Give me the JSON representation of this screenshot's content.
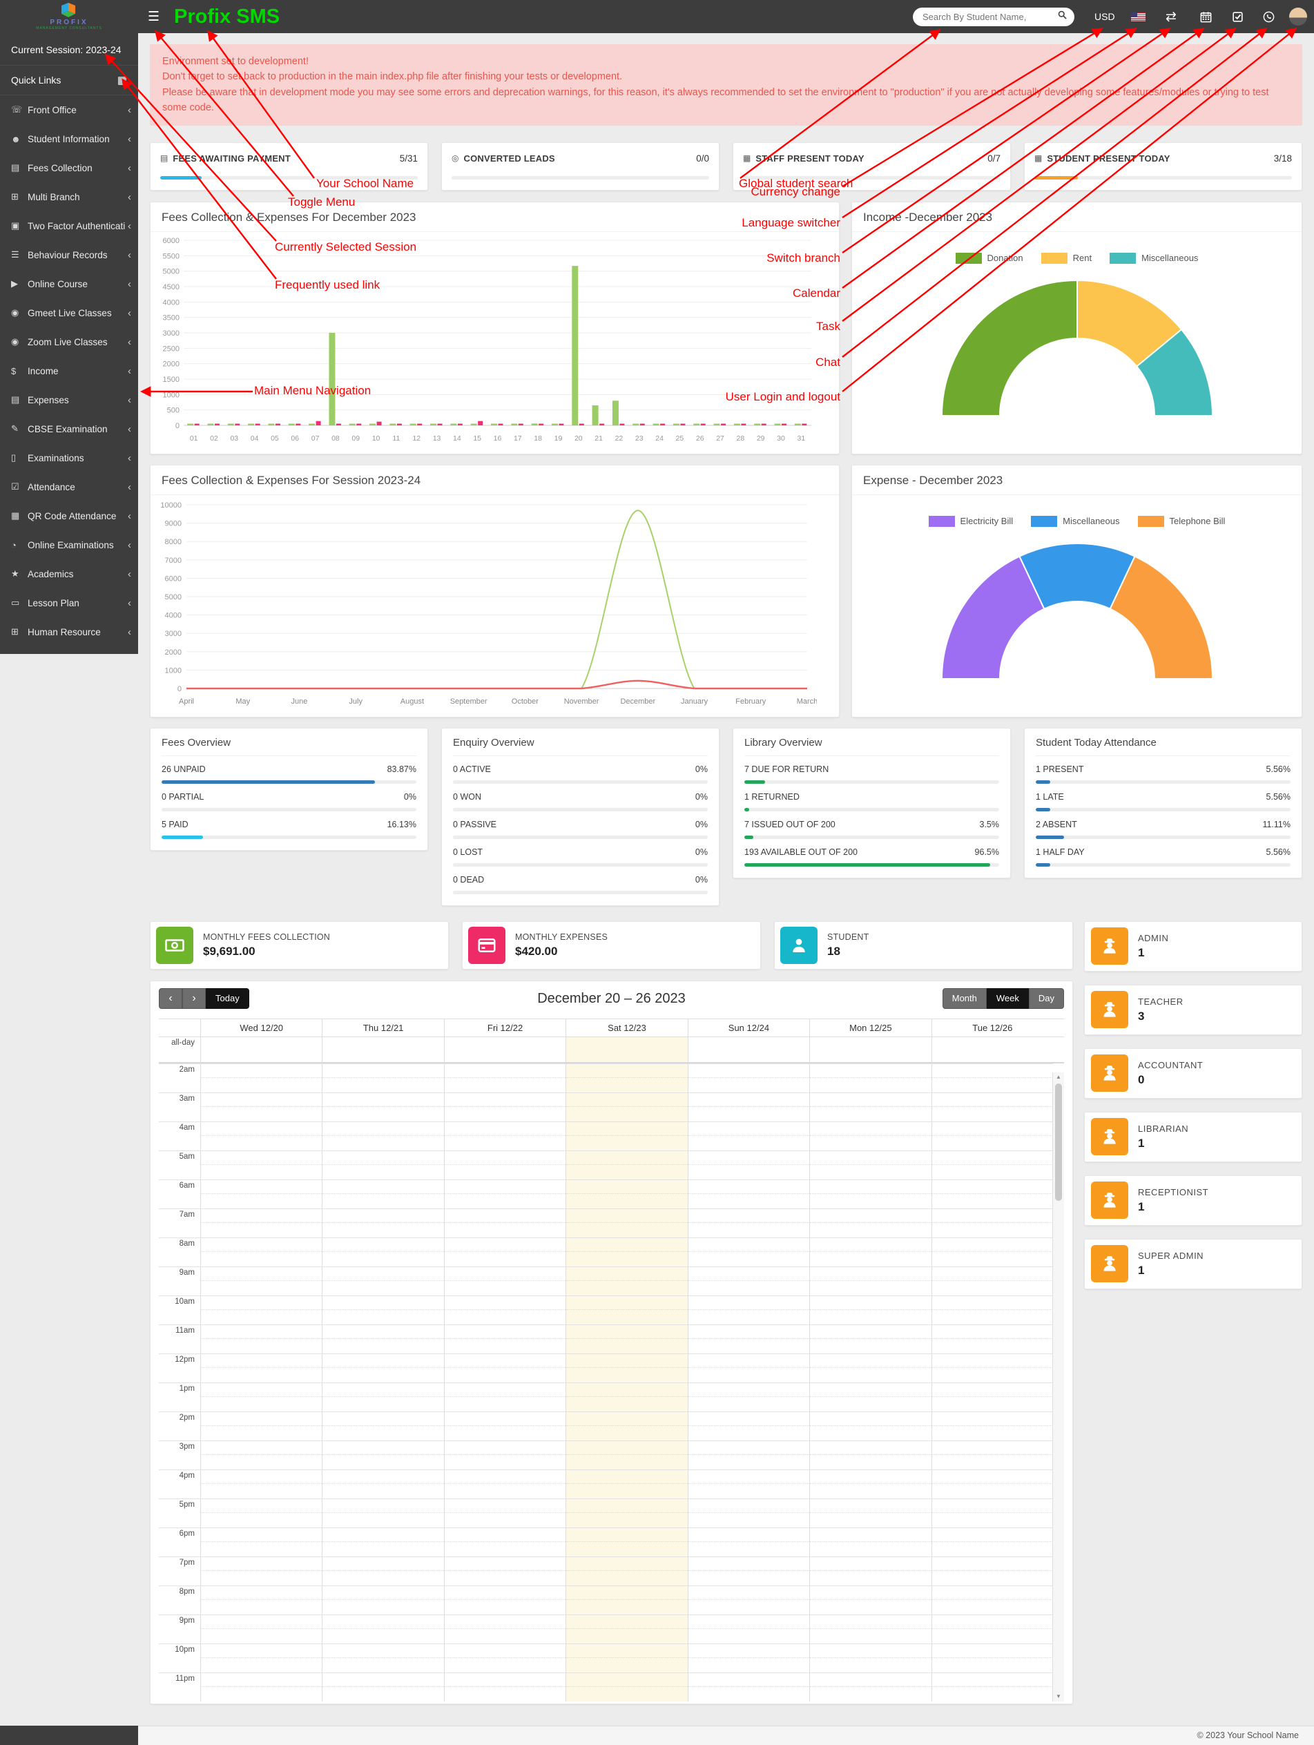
{
  "header": {
    "logo_title": "PROFIX",
    "logo_subtitle": "MANAGEMENT CONSULTANTS",
    "app_title": "Profix SMS",
    "search_placeholder": "Search By Student Name,",
    "currency": "USD"
  },
  "sidebar": {
    "session_label": "Current Session: 2023-24",
    "quick_links_label": "Quick Links",
    "items": [
      {
        "label": "Front Office",
        "icon": "phone-icon"
      },
      {
        "label": "Student Information",
        "icon": "user-plus-icon"
      },
      {
        "label": "Fees Collection",
        "icon": "money-bill-icon"
      },
      {
        "label": "Multi Branch",
        "icon": "sitemap-icon"
      },
      {
        "label": "Two Factor Authentication",
        "icon": "lock-icon"
      },
      {
        "label": "Behaviour Records",
        "icon": "sliders-icon"
      },
      {
        "label": "Online Course",
        "icon": "video-file-icon"
      },
      {
        "label": "Gmeet Live Classes",
        "icon": "video-camera-icon"
      },
      {
        "label": "Zoom Live Classes",
        "icon": "video-camera-icon"
      },
      {
        "label": "Income",
        "icon": "dollar-icon"
      },
      {
        "label": "Expenses",
        "icon": "credit-card-icon"
      },
      {
        "label": "CBSE Examination",
        "icon": "file-icon"
      },
      {
        "label": "Examinations",
        "icon": "book-icon"
      },
      {
        "label": "Attendance",
        "icon": "calendar-check-icon"
      },
      {
        "label": "QR Code Attendance",
        "icon": "qrcode-icon"
      },
      {
        "label": "Online Examinations",
        "icon": "rss-icon"
      },
      {
        "label": "Academics",
        "icon": "graduation-cap-icon"
      },
      {
        "label": "Lesson Plan",
        "icon": "newspaper-icon"
      },
      {
        "label": "Human Resource",
        "icon": "sitemap-icon"
      }
    ]
  },
  "alert": {
    "line1": "Environment set to development!",
    "line2": "Don't forget to set back to production in the main index.php file after finishing your tests or development.",
    "line3": "Please be aware that in development mode you may see some errors and deprecation warnings, for this reason, it's always recommended to set the environment to \"production\" if you are not actually developing some features/modules or trying to test some code."
  },
  "annotations": [
    {
      "id": "your-school-name",
      "text": "Your School Name"
    },
    {
      "id": "toggle-menu",
      "text": "Toggle Menu"
    },
    {
      "id": "currently-selected-session",
      "text": "Currently Selected Session"
    },
    {
      "id": "frequently-used-link",
      "text": "Frequently used link"
    },
    {
      "id": "main-menu-navigation",
      "text": "Main Menu Navigation"
    },
    {
      "id": "global-student-search",
      "text": "Global student search"
    },
    {
      "id": "currency-change",
      "text": "Currency change"
    },
    {
      "id": "language-switcher",
      "text": "Language switcher"
    },
    {
      "id": "switch-branch",
      "text": "Switch branch"
    },
    {
      "id": "calendar",
      "text": "Calendar"
    },
    {
      "id": "task",
      "text": "Task"
    },
    {
      "id": "chat",
      "text": "Chat"
    },
    {
      "id": "user-login-and-logout",
      "text": "User Login and logout"
    }
  ],
  "stat_cards": [
    {
      "label": "FEES AWAITING PAYMENT",
      "value": "5/31",
      "progress": 16,
      "color": "#29b7e5",
      "icon": "money-bill-icon"
    },
    {
      "label": "CONVERTED LEADS",
      "value": "0/0",
      "progress": 0,
      "color": "#29b7e5",
      "icon": "leads-icon"
    },
    {
      "label": "STAFF PRESENT TODAY",
      "value": "0/7",
      "progress": 0,
      "color": "#f0a32f",
      "icon": "calendar-icon"
    },
    {
      "label": "STUDENT PRESENT TODAY",
      "value": "3/18",
      "progress": 17,
      "color": "#f0a32f",
      "icon": "calendar-icon"
    }
  ],
  "chart_data": [
    {
      "id": "daily-fees-expenses",
      "type": "bar",
      "title": "Fees Collection & Expenses For December 2023",
      "categories": [
        "01",
        "02",
        "03",
        "04",
        "05",
        "06",
        "07",
        "08",
        "09",
        "10",
        "11",
        "12",
        "13",
        "14",
        "15",
        "16",
        "17",
        "18",
        "19",
        "20",
        "21",
        "22",
        "23",
        "24",
        "25",
        "26",
        "27",
        "28",
        "29",
        "30",
        "31"
      ],
      "series": [
        {
          "name": "Fees Collection",
          "color": "#9ccc65",
          "values": [
            0,
            0,
            0,
            0,
            0,
            0,
            0,
            3000,
            0,
            0,
            0,
            0,
            0,
            0,
            0,
            0,
            0,
            60,
            0,
            5170,
            650,
            800,
            0,
            0,
            0,
            0,
            0,
            0,
            0,
            0,
            0
          ]
        },
        {
          "name": "Expenses",
          "color": "#ed2f73",
          "values": [
            0,
            0,
            0,
            0,
            0,
            0,
            140,
            0,
            0,
            120,
            0,
            0,
            0,
            0,
            140,
            0,
            0,
            0,
            0,
            0,
            0,
            0,
            0,
            0,
            0,
            0,
            0,
            0,
            0,
            0,
            0
          ]
        }
      ],
      "ylim": [
        0,
        6000
      ],
      "ytick": 500,
      "grid": true,
      "legend": "none"
    },
    {
      "id": "income-december",
      "type": "pie",
      "style": "half-donut",
      "title": "Income -December 2023",
      "labels": [
        "Donation",
        "Rent",
        "Miscellaneous"
      ],
      "values": [
        50,
        28,
        22
      ],
      "colors": [
        "#6fa92d",
        "#fcc44d",
        "#45bcbc"
      ],
      "legend_position": "top"
    },
    {
      "id": "session-fees-expenses",
      "type": "line",
      "title": "Fees Collection & Expenses For Session 2023-24",
      "categories": [
        "April",
        "May",
        "June",
        "July",
        "August",
        "September",
        "October",
        "November",
        "December",
        "January",
        "February",
        "March"
      ],
      "series": [
        {
          "name": "Fees Collection",
          "color": "#a8d168",
          "values": [
            0,
            0,
            0,
            0,
            0,
            0,
            0,
            0,
            9691,
            0,
            0,
            0
          ]
        },
        {
          "name": "Expenses",
          "color": "#ef6060",
          "values": [
            0,
            0,
            0,
            0,
            0,
            0,
            0,
            0,
            420,
            0,
            0,
            0
          ]
        }
      ],
      "ylim": [
        0,
        10000
      ],
      "ytick": 1000,
      "grid": true,
      "legend": "none"
    },
    {
      "id": "expense-december",
      "type": "pie",
      "style": "half-donut",
      "title": "Expense - December 2023",
      "labels": [
        "Electricity Bill",
        "Miscellaneous",
        "Telephone Bill"
      ],
      "values": [
        36,
        28,
        36
      ],
      "colors": [
        "#9d6ef2",
        "#3598e8",
        "#f99d3f"
      ],
      "legend_position": "top"
    }
  ],
  "overview_cards": [
    {
      "title": "Fees Overview",
      "rows": [
        {
          "label": "26 UNPAID",
          "value": "83.87%",
          "progress": 83.87,
          "color": "#337ab7"
        },
        {
          "label": "0 PARTIAL",
          "value": "0%",
          "progress": 0,
          "color": "#337ab7"
        },
        {
          "label": "5 PAID",
          "value": "16.13%",
          "progress": 16.13,
          "color": "#29c1ee"
        }
      ]
    },
    {
      "title": "Enquiry Overview",
      "rows": [
        {
          "label": "0 ACTIVE",
          "value": "0%",
          "progress": 0,
          "color": "#337ab7"
        },
        {
          "label": "0 WON",
          "value": "0%",
          "progress": 0,
          "color": "#337ab7"
        },
        {
          "label": "0 PASSIVE",
          "value": "0%",
          "progress": 0,
          "color": "#337ab7"
        },
        {
          "label": "0 LOST",
          "value": "0%",
          "progress": 0,
          "color": "#337ab7"
        },
        {
          "label": "0 DEAD",
          "value": "0%",
          "progress": 0,
          "color": "#337ab7"
        }
      ]
    },
    {
      "title": "Library Overview",
      "rows": [
        {
          "label": "7 DUE FOR RETURN",
          "value": "",
          "progress": 8,
          "color": "#23a55a"
        },
        {
          "label": "1 RETURNED",
          "value": "",
          "progress": 2,
          "color": "#23a55a"
        },
        {
          "label": "7 ISSUED OUT OF 200",
          "value": "3.5%",
          "progress": 3.5,
          "color": "#23a55a"
        },
        {
          "label": "193 AVAILABLE OUT OF 200",
          "value": "96.5%",
          "progress": 96.5,
          "color": "#23a55a"
        }
      ]
    },
    {
      "title": "Student Today Attendance",
      "rows": [
        {
          "label": "1 PRESENT",
          "value": "5.56%",
          "progress": 5.56,
          "color": "#337ab7"
        },
        {
          "label": "1 LATE",
          "value": "5.56%",
          "progress": 5.56,
          "color": "#337ab7"
        },
        {
          "label": "2 ABSENT",
          "value": "11.11%",
          "progress": 11.11,
          "color": "#337ab7"
        },
        {
          "label": "1 HALF DAY",
          "value": "5.56%",
          "progress": 5.56,
          "color": "#337ab7"
        }
      ]
    }
  ],
  "monthly_cards": [
    {
      "label": "MONTHLY FEES COLLECTION",
      "value": "$9,691.00",
      "color": "#6fb52c",
      "icon": "money-bill-icon"
    },
    {
      "label": "MONTHLY EXPENSES",
      "value": "$420.00",
      "color": "#ee2a67",
      "icon": "credit-card-icon"
    },
    {
      "label": "STUDENT",
      "value": "18",
      "color": "#16b7cb",
      "icon": "student-icon"
    }
  ],
  "role_cards": [
    {
      "label": "ADMIN",
      "value": "1"
    },
    {
      "label": "TEACHER",
      "value": "3"
    },
    {
      "label": "ACCOUNTANT",
      "value": "0"
    },
    {
      "label": "LIBRARIAN",
      "value": "1"
    },
    {
      "label": "RECEPTIONIST",
      "value": "1"
    },
    {
      "label": "SUPER ADMIN",
      "value": "1"
    }
  ],
  "calendar": {
    "nav_prev": "‹",
    "nav_next": "›",
    "today_label": "Today",
    "title": "December 20 – 26 2023",
    "views": [
      "Month",
      "Week",
      "Day"
    ],
    "active_view": "Week",
    "all_day_label": "all-day",
    "day_headers": [
      "Wed 12/20",
      "Thu 12/21",
      "Fri 12/22",
      "Sat 12/23",
      "Sun 12/24",
      "Mon 12/25",
      "Tue 12/26"
    ],
    "highlighted_day": "Sat 12/23",
    "hours": [
      "2am",
      "3am",
      "4am",
      "5am",
      "6am",
      "7am",
      "8am",
      "9am",
      "10am",
      "11am",
      "12pm",
      "1pm",
      "2pm",
      "3pm",
      "4pm",
      "5pm",
      "6pm",
      "7pm",
      "8pm",
      "9pm",
      "10pm",
      "11pm"
    ]
  },
  "footer": {
    "copyright": "© 2023 Your School Name"
  }
}
